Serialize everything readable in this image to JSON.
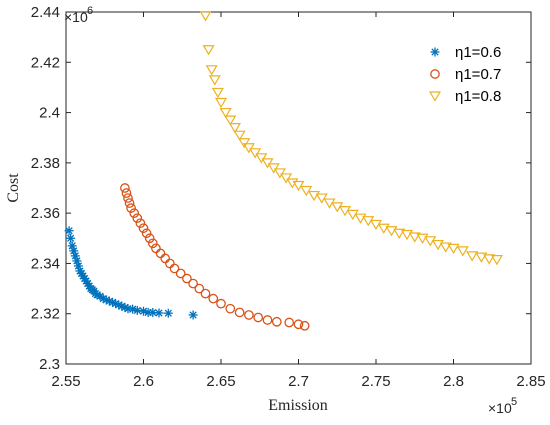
{
  "chart_data": {
    "type": "scatter",
    "title": "",
    "xlabel": "Emission",
    "ylabel": "Cost",
    "x_multiplier_label": "×10",
    "x_multiplier_exp": "5",
    "y_multiplier_label": "×10",
    "y_multiplier_exp": "6",
    "xlim": [
      2.55,
      2.85
    ],
    "ylim": [
      2.3,
      2.44
    ],
    "xticks": [
      2.55,
      2.6,
      2.65,
      2.7,
      2.75,
      2.8,
      2.85
    ],
    "xtick_labels": [
      "2.55",
      "2.6",
      "2.65",
      "2.7",
      "2.75",
      "2.8",
      "2.85"
    ],
    "yticks": [
      2.3,
      2.32,
      2.34,
      2.36,
      2.38,
      2.4,
      2.42,
      2.44
    ],
    "ytick_labels": [
      "2.3",
      "2.32",
      "2.34",
      "2.36",
      "2.38",
      "2.4",
      "2.42",
      "2.44"
    ],
    "grid": false,
    "legend_position": "top-right",
    "series": [
      {
        "name": "η1=0.6",
        "marker": "asterisk",
        "color": "#0072BD",
        "points": [
          [
            2.552,
            2.353
          ],
          [
            2.553,
            2.35
          ],
          [
            2.554,
            2.347
          ],
          [
            2.555,
            2.345
          ],
          [
            2.556,
            2.343
          ],
          [
            2.557,
            2.341
          ],
          [
            2.558,
            2.339
          ],
          [
            2.559,
            2.337
          ],
          [
            2.56,
            2.336
          ],
          [
            2.561,
            2.335
          ],
          [
            2.562,
            2.334
          ],
          [
            2.563,
            2.333
          ],
          [
            2.564,
            2.332
          ],
          [
            2.565,
            2.331
          ],
          [
            2.566,
            2.33
          ],
          [
            2.567,
            2.3295
          ],
          [
            2.568,
            2.329
          ],
          [
            2.569,
            2.328
          ],
          [
            2.57,
            2.3275
          ],
          [
            2.572,
            2.327
          ],
          [
            2.574,
            2.326
          ],
          [
            2.576,
            2.3255
          ],
          [
            2.578,
            2.325
          ],
          [
            2.58,
            2.3245
          ],
          [
            2.582,
            2.324
          ],
          [
            2.584,
            2.3235
          ],
          [
            2.586,
            2.323
          ],
          [
            2.588,
            2.3225
          ],
          [
            2.59,
            2.322
          ],
          [
            2.593,
            2.3218
          ],
          [
            2.596,
            2.3213
          ],
          [
            2.6,
            2.321
          ],
          [
            2.603,
            2.3205
          ],
          [
            2.606,
            2.3205
          ],
          [
            2.61,
            2.3203
          ],
          [
            2.616,
            2.3202
          ],
          [
            2.632,
            2.3195
          ]
        ]
      },
      {
        "name": "η1=0.7",
        "marker": "circle",
        "color": "#D95319",
        "points": [
          [
            2.588,
            2.37
          ],
          [
            2.589,
            2.368
          ],
          [
            2.59,
            2.366
          ],
          [
            2.591,
            2.364
          ],
          [
            2.592,
            2.362
          ],
          [
            2.594,
            2.36
          ],
          [
            2.596,
            2.358
          ],
          [
            2.598,
            2.356
          ],
          [
            2.6,
            2.354
          ],
          [
            2.602,
            2.352
          ],
          [
            2.604,
            2.35
          ],
          [
            2.606,
            2.348
          ],
          [
            2.608,
            2.346
          ],
          [
            2.611,
            2.344
          ],
          [
            2.614,
            2.342
          ],
          [
            2.617,
            2.34
          ],
          [
            2.62,
            2.338
          ],
          [
            2.624,
            2.336
          ],
          [
            2.628,
            2.334
          ],
          [
            2.632,
            2.332
          ],
          [
            2.636,
            2.33
          ],
          [
            2.64,
            2.328
          ],
          [
            2.645,
            2.326
          ],
          [
            2.65,
            2.324
          ],
          [
            2.656,
            2.322
          ],
          [
            2.662,
            2.3205
          ],
          [
            2.668,
            2.3195
          ],
          [
            2.674,
            2.3185
          ],
          [
            2.68,
            2.3175
          ],
          [
            2.686,
            2.3168
          ],
          [
            2.694,
            2.3165
          ],
          [
            2.7,
            2.3158
          ],
          [
            2.704,
            2.3152
          ]
        ]
      },
      {
        "name": "η1=0.8",
        "marker": "triangle-down",
        "color": "#EDB120",
        "points": [
          [
            2.64,
            2.4385
          ],
          [
            2.642,
            2.425
          ],
          [
            2.644,
            2.417
          ],
          [
            2.646,
            2.413
          ],
          [
            2.648,
            2.408
          ],
          [
            2.65,
            2.404
          ],
          [
            2.653,
            2.4
          ],
          [
            2.656,
            2.397
          ],
          [
            2.659,
            2.394
          ],
          [
            2.662,
            2.391
          ],
          [
            2.665,
            2.388
          ],
          [
            2.668,
            2.386
          ],
          [
            2.672,
            2.384
          ],
          [
            2.676,
            2.382
          ],
          [
            2.68,
            2.38
          ],
          [
            2.684,
            2.378
          ],
          [
            2.688,
            2.376
          ],
          [
            2.692,
            2.374
          ],
          [
            2.696,
            2.372
          ],
          [
            2.7,
            2.371
          ],
          [
            2.705,
            2.369
          ],
          [
            2.71,
            2.367
          ],
          [
            2.715,
            2.366
          ],
          [
            2.72,
            2.364
          ],
          [
            2.725,
            2.3625
          ],
          [
            2.73,
            2.361
          ],
          [
            2.735,
            2.3595
          ],
          [
            2.74,
            2.358
          ],
          [
            2.745,
            2.357
          ],
          [
            2.75,
            2.3555
          ],
          [
            2.755,
            2.354
          ],
          [
            2.76,
            2.353
          ],
          [
            2.765,
            2.352
          ],
          [
            2.77,
            2.3515
          ],
          [
            2.775,
            2.3505
          ],
          [
            2.78,
            2.35
          ],
          [
            2.785,
            2.349
          ],
          [
            2.79,
            2.3475
          ],
          [
            2.795,
            2.3465
          ],
          [
            2.8,
            2.346
          ],
          [
            2.806,
            2.345
          ],
          [
            2.812,
            2.343
          ],
          [
            2.818,
            2.3425
          ],
          [
            2.823,
            2.3418
          ],
          [
            2.828,
            2.3415
          ]
        ]
      }
    ]
  }
}
